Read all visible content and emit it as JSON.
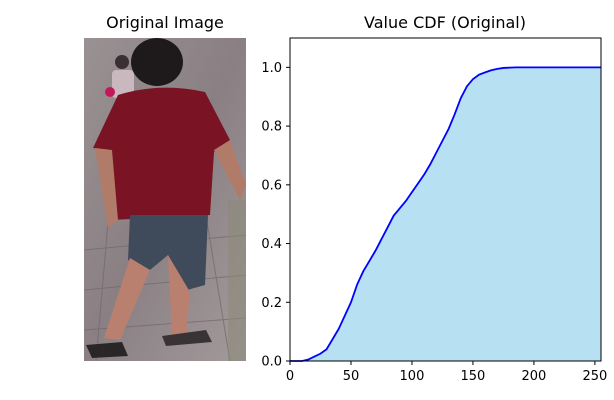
{
  "figure": {
    "left_panel": {
      "title": "Original Image",
      "image_description_icon": "person-walking-photo"
    },
    "right_panel": {
      "title": "Value CDF (Original)"
    }
  },
  "chart_data": {
    "type": "area",
    "title": "Value CDF (Original)",
    "xlabel": "",
    "ylabel": "",
    "xlim": [
      0,
      255
    ],
    "ylim": [
      0,
      1.1
    ],
    "grid": false,
    "legend": "none",
    "x_ticks": [
      0,
      50,
      100,
      150,
      200,
      250
    ],
    "x_tick_labels": [
      "0",
      "50",
      "100",
      "150",
      "200",
      "250"
    ],
    "y_ticks": [
      0.0,
      0.2,
      0.4,
      0.6,
      0.8,
      1.0
    ],
    "y_tick_labels": [
      "0.0",
      "0.2",
      "0.4",
      "0.6",
      "0.8",
      "1.0"
    ],
    "colors": {
      "line": "#0000ff",
      "fill": "#b7e0f2"
    },
    "x": [
      0,
      10,
      15,
      20,
      25,
      30,
      35,
      40,
      45,
      50,
      55,
      60,
      65,
      70,
      75,
      80,
      85,
      90,
      95,
      100,
      105,
      110,
      115,
      120,
      125,
      130,
      135,
      140,
      145,
      150,
      155,
      160,
      165,
      170,
      175,
      180,
      185,
      190,
      200,
      210,
      220,
      230,
      240,
      255
    ],
    "values": [
      0,
      0.0,
      0.005,
      0.015,
      0.025,
      0.04,
      0.075,
      0.11,
      0.155,
      0.2,
      0.26,
      0.305,
      0.34,
      0.375,
      0.415,
      0.455,
      0.495,
      0.52,
      0.545,
      0.575,
      0.605,
      0.635,
      0.67,
      0.71,
      0.75,
      0.79,
      0.84,
      0.895,
      0.935,
      0.96,
      0.975,
      0.983,
      0.99,
      0.995,
      0.998,
      0.999,
      1.0,
      1.0,
      1.0,
      1.0,
      1.0,
      1.0,
      1.0,
      1.0
    ]
  }
}
